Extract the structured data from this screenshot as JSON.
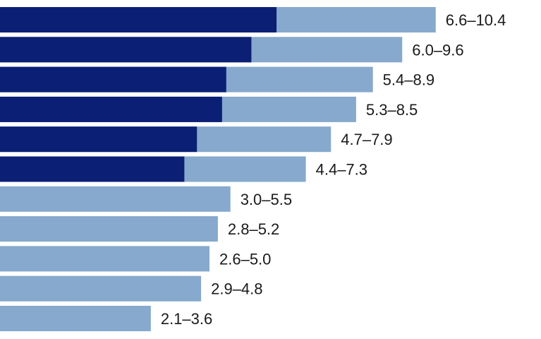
{
  "chart_data": {
    "type": "bar",
    "orientation": "horizontal",
    "stacked": false,
    "title": "",
    "xlabel": "",
    "ylabel": "",
    "grid": false,
    "legend": "none",
    "xlim": [
      0,
      10.4
    ],
    "ranges": [
      {
        "low": 6.6,
        "high": 10.4,
        "label": "6.6–10.4",
        "highlight": true
      },
      {
        "low": 6.0,
        "high": 9.6,
        "label": "6.0–9.6",
        "highlight": true
      },
      {
        "low": 5.4,
        "high": 8.9,
        "label": "5.4–8.9",
        "highlight": true
      },
      {
        "low": 5.3,
        "high": 8.5,
        "label": "5.3–8.5",
        "highlight": true
      },
      {
        "low": 4.7,
        "high": 7.9,
        "label": "4.7–7.9",
        "highlight": true
      },
      {
        "low": 4.4,
        "high": 7.3,
        "label": "4.4–7.3",
        "highlight": true
      },
      {
        "low": 3.0,
        "high": 5.5,
        "label": "3.0–5.5",
        "highlight": false
      },
      {
        "low": 2.8,
        "high": 5.2,
        "label": "2.8–5.2",
        "highlight": false
      },
      {
        "low": 2.6,
        "high": 5.0,
        "label": "2.6–5.0",
        "highlight": false
      },
      {
        "low": 2.9,
        "high": 4.8,
        "label": "2.9–4.8",
        "highlight": false
      },
      {
        "low": 2.1,
        "high": 3.6,
        "label": "2.1–3.6",
        "highlight": false
      }
    ],
    "colors": {
      "high_bar": "#86a9cd",
      "low_bar": "#0b1f75"
    }
  }
}
